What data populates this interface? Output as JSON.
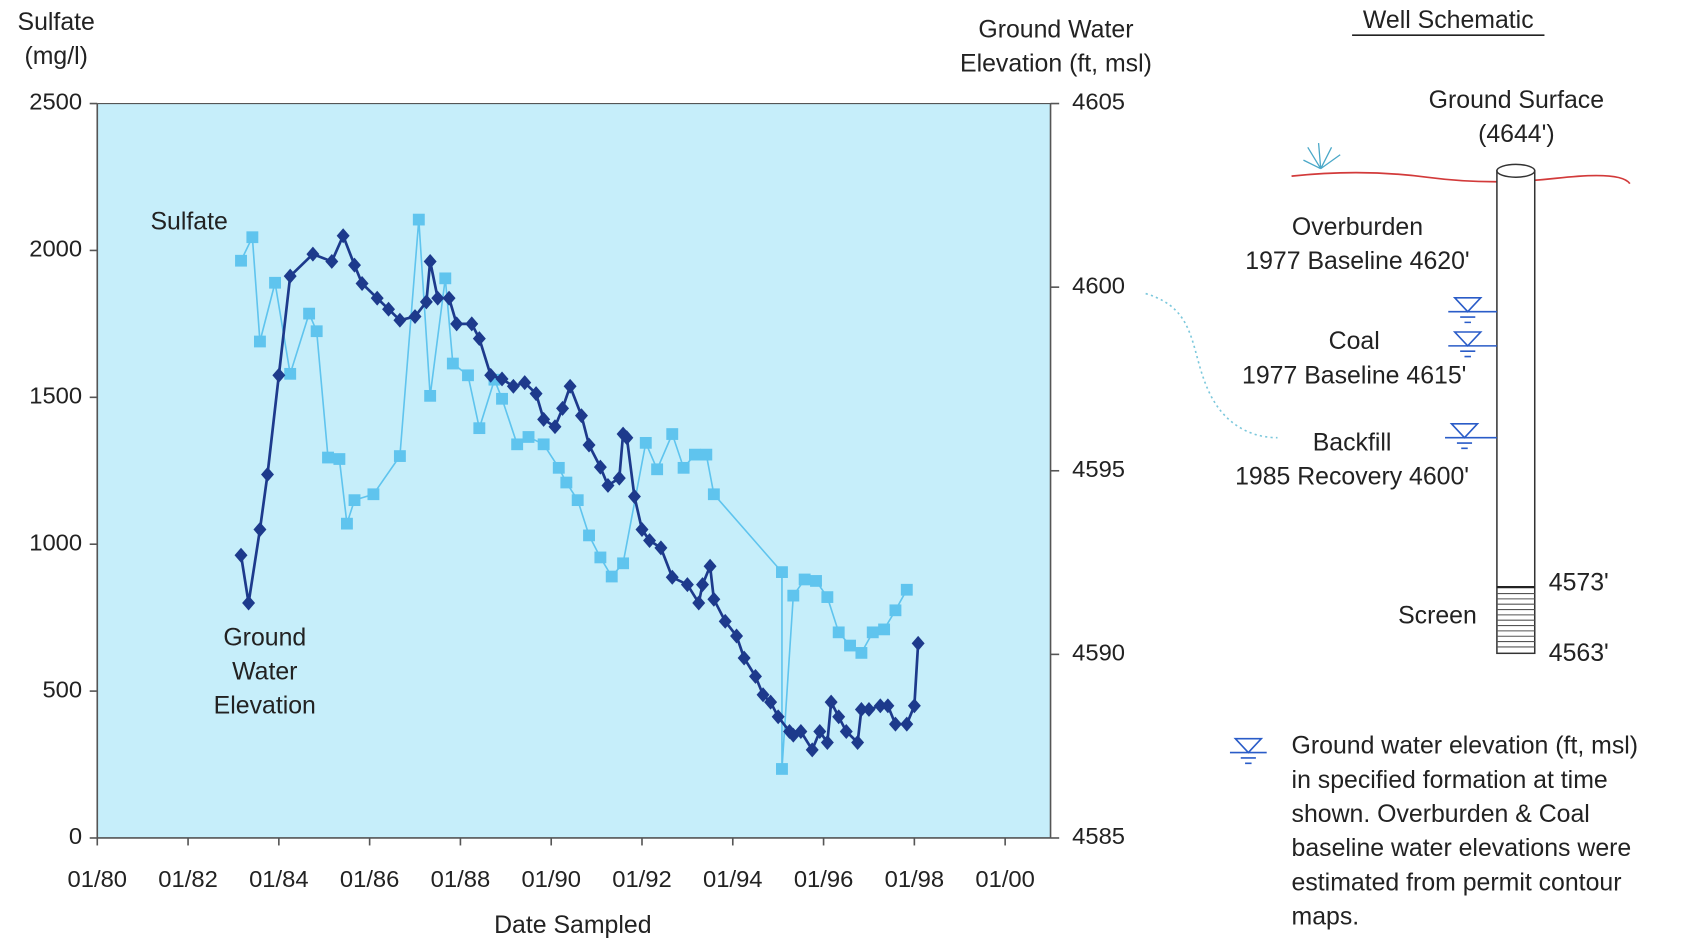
{
  "chart_data": {
    "type": "line",
    "ylabel": [
      "Sulfate",
      "(mg/l)"
    ],
    "y2label": [
      "Ground Water",
      "Elevation (ft, msl)"
    ],
    "xlabel": "Date Sampled",
    "xlim": [
      "1980-01",
      "2001-01"
    ],
    "xticks": [
      {
        "value": "1980-01",
        "label": "01/80"
      },
      {
        "value": "1982-01",
        "label": "01/82"
      },
      {
        "value": "1984-01",
        "label": "01/84"
      },
      {
        "value": "1986-01",
        "label": "01/86"
      },
      {
        "value": "1988-01",
        "label": "01/88"
      },
      {
        "value": "1990-01",
        "label": "01/90"
      },
      {
        "value": "1992-01",
        "label": "01/92"
      },
      {
        "value": "1994-01",
        "label": "01/94"
      },
      {
        "value": "1996-01",
        "label": "01/96"
      },
      {
        "value": "1998-01",
        "label": "01/98"
      },
      {
        "value": "2000-01",
        "label": "01/00"
      }
    ],
    "ylim": [
      0,
      2500
    ],
    "yticks": [
      0,
      500,
      1000,
      1500,
      2000,
      2500
    ],
    "y2lim": [
      4585,
      4605
    ],
    "y2ticks": [
      4585,
      4590,
      4595,
      4600,
      4605
    ],
    "background": "#c6eefa",
    "series": [
      {
        "name": "Sulfate",
        "color": "#5fc4ee",
        "marker": "square",
        "x": [
          "1983-03",
          "1983-06",
          "1983-08",
          "1983-12",
          "1984-04",
          "1984-09",
          "1984-11",
          "1985-02",
          "1985-05",
          "1985-07",
          "1985-09",
          "1986-02",
          "1986-09",
          "1987-02",
          "1987-05",
          "1987-09",
          "1987-11",
          "1988-03",
          "1988-06",
          "1988-10",
          "1988-12",
          "1989-04",
          "1989-07",
          "1989-11",
          "1990-03",
          "1990-05",
          "1990-08",
          "1990-11",
          "1991-02",
          "1991-05",
          "1991-08",
          "1992-02",
          "1992-05",
          "1992-09",
          "1992-12",
          "1993-03",
          "1993-06",
          "1993-08",
          "1995-02",
          "1995-02",
          "1995-05",
          "1995-08",
          "1995-11",
          "1996-02",
          "1996-05",
          "1996-08",
          "1996-11",
          "1997-02",
          "1997-05",
          "1997-08",
          "1997-11"
        ],
        "values": [
          1965,
          2045,
          1690,
          1890,
          1580,
          1785,
          1725,
          1295,
          1290,
          1070,
          1150,
          1170,
          1300,
          2105,
          1505,
          1905,
          1615,
          1575,
          1395,
          1560,
          1495,
          1340,
          1365,
          1340,
          1260,
          1210,
          1150,
          1030,
          955,
          890,
          935,
          1345,
          1255,
          1375,
          1260,
          1305,
          1305,
          1170,
          905,
          235,
          825,
          880,
          875,
          820,
          700,
          655,
          630,
          700,
          710,
          775,
          845
        ]
      },
      {
        "name": "Ground Water Elevation",
        "color": "#1d3a8c",
        "marker": "diamond",
        "axis": "y2",
        "x": [
          "1983-03",
          "1983-05",
          "1983-08",
          "1983-10",
          "1984-01",
          "1984-04",
          "1984-10",
          "1985-03",
          "1985-06",
          "1985-09",
          "1985-11",
          "1986-03",
          "1986-06",
          "1986-09",
          "1987-01",
          "1987-04",
          "1987-05",
          "1987-07",
          "1987-10",
          "1987-12",
          "1988-04",
          "1988-06",
          "1988-09",
          "1988-12",
          "1989-03",
          "1989-06",
          "1989-09",
          "1989-11",
          "1990-02",
          "1990-04",
          "1990-06",
          "1990-09",
          "1990-11",
          "1991-02",
          "1991-04",
          "1991-07",
          "1991-08",
          "1991-09",
          "1991-11",
          "1992-01",
          "1992-03",
          "1992-06",
          "1992-09",
          "1993-01",
          "1993-04",
          "1993-05",
          "1993-07",
          "1993-08",
          "1993-11",
          "1994-02",
          "1994-04",
          "1994-07",
          "1994-09",
          "1994-11",
          "1995-01",
          "1995-04",
          "1995-05",
          "1995-07",
          "1995-10",
          "1995-12",
          "1996-02",
          "1996-03",
          "1996-05",
          "1996-07",
          "1996-10",
          "1996-11",
          "1997-01",
          "1997-04",
          "1997-06",
          "1997-08",
          "1997-11",
          "1998-01",
          "1998-02"
        ],
        "values": [
          4592.7,
          4591.4,
          4593.4,
          4594.9,
          4597.6,
          4600.3,
          4600.9,
          4600.7,
          4601.4,
          4600.6,
          4600.1,
          4599.7,
          4599.4,
          4599.1,
          4599.2,
          4599.6,
          4600.7,
          4599.7,
          4599.7,
          4599.0,
          4599.0,
          4598.6,
          4597.6,
          4597.5,
          4597.3,
          4597.4,
          4597.1,
          4596.4,
          4596.2,
          4596.7,
          4597.3,
          4596.5,
          4595.7,
          4595.1,
          4594.6,
          4594.8,
          4596.0,
          4595.9,
          4594.3,
          4593.4,
          4593.1,
          4592.9,
          4592.1,
          4591.9,
          4591.4,
          4591.9,
          4592.4,
          4591.5,
          4590.9,
          4590.5,
          4589.9,
          4589.4,
          4588.9,
          4588.7,
          4588.3,
          4587.9,
          4587.8,
          4587.9,
          4587.4,
          4587.9,
          4587.6,
          4588.7,
          4588.3,
          4587.9,
          4587.6,
          4588.5,
          4588.5,
          4588.6,
          4588.6,
          4588.1,
          4588.1,
          4588.6,
          4590.3
        ]
      }
    ]
  },
  "schematic": {
    "title": "Well Schematic",
    "ground_surface": [
      "Ground Surface",
      "(4644')"
    ],
    "formations": [
      {
        "name": "Overburden",
        "level": "1977 Baseline 4620'"
      },
      {
        "name": "Coal",
        "level": "1977 Baseline 4615'"
      },
      {
        "name": "Backfill",
        "level": "1985 Recovery 4600'"
      }
    ],
    "screen": {
      "label": "Screen",
      "top": "4573'",
      "bottom": "4563'"
    },
    "legend": [
      "Ground water elevation (ft, msl)",
      "in specified formation at time",
      "shown. Overburden & Coal",
      "baseline water elevations were",
      "estimated from permit contour",
      "maps."
    ]
  }
}
